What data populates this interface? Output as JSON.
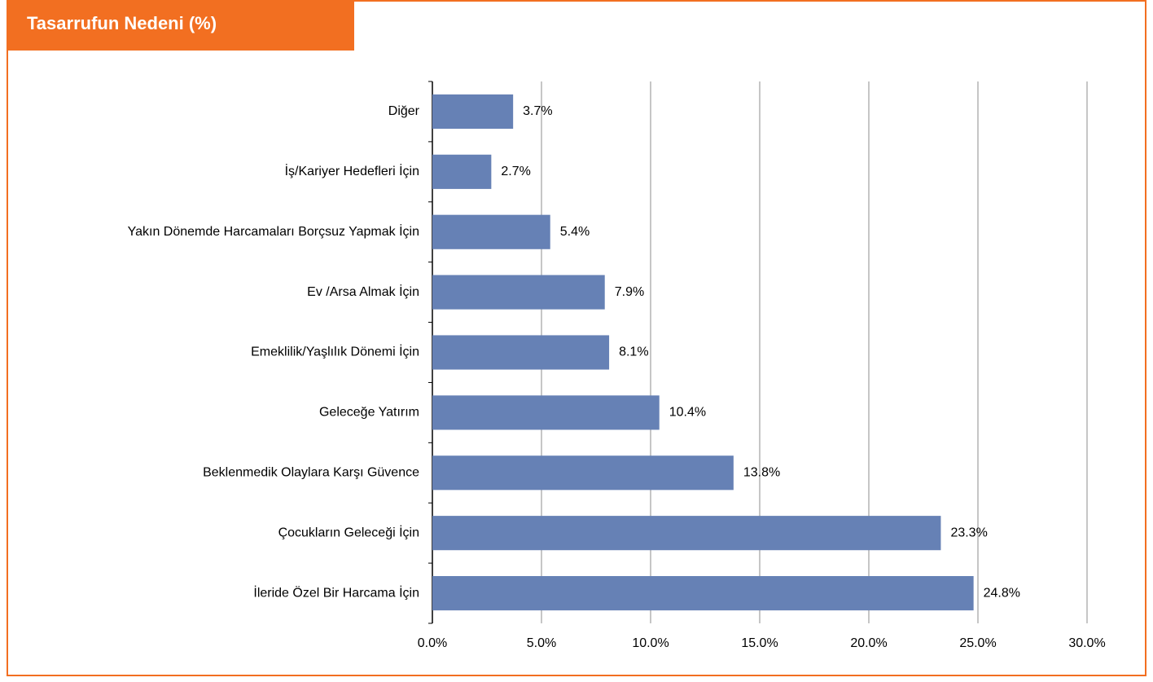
{
  "chart_data": {
    "type": "barh",
    "title": "Tasarrufun Nedeni (%)",
    "categories": [
      "Diğer",
      "İş/Kariyer Hedefleri İçin",
      "Yakın Dönemde Harcamaları Borçsuz Yapmak İçin",
      "Ev /Arsa Almak İçin",
      "Emeklilik/Yaşlılık Dönemi İçin",
      "Geleceğe Yatırım",
      "Beklenmedik Olaylara Karşı Güvence",
      "Çocukların Geleceği İçin",
      "İleride Özel Bir Harcama İçin"
    ],
    "values": [
      3.7,
      2.7,
      5.4,
      7.9,
      8.1,
      10.4,
      13.8,
      23.3,
      24.8
    ],
    "value_labels": [
      "3.7%",
      "2.7%",
      "5.4%",
      "7.9%",
      "8.1%",
      "10.4%",
      "13.8%",
      "23.3%",
      "24.8%"
    ],
    "color": "#6681b5",
    "xlim": [
      0,
      30
    ],
    "xticks": [
      {
        "value": 0,
        "label": "0.0%"
      },
      {
        "value": 5,
        "label": "5.0%"
      },
      {
        "value": 10,
        "label": "10.0%"
      },
      {
        "value": 15,
        "label": "15.0%"
      },
      {
        "value": 20,
        "label": "20.0%"
      },
      {
        "value": 25,
        "label": "25.0%"
      },
      {
        "value": 30,
        "label": "30.0%"
      }
    ],
    "grid": true
  }
}
